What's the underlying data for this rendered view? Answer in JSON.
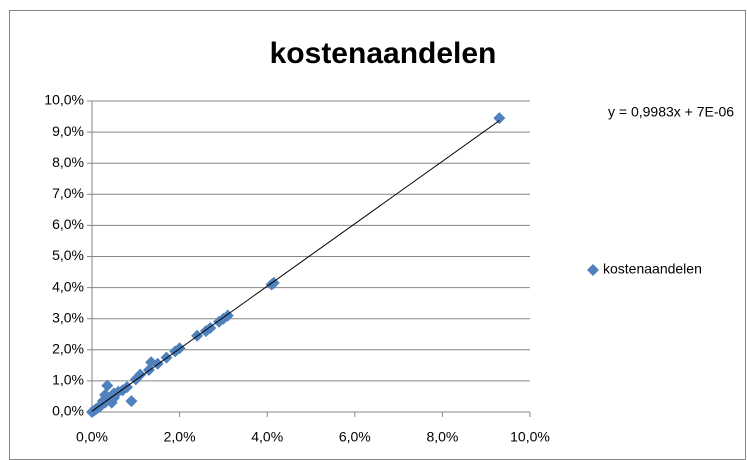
{
  "chart_data": {
    "type": "scatter",
    "title": "kostenaandelen",
    "annotation": "y = 0,9983x + 7E-06",
    "trendline": true,
    "grid": true,
    "legend": "right",
    "series": [
      {
        "name": "kostenaandelen",
        "color": "#4f81bd",
        "x": [
          9.3,
          4.1,
          4.15,
          3.1,
          3.0,
          2.9,
          2.7,
          2.6,
          2.4,
          2.0,
          1.9,
          1.7,
          1.5,
          1.35,
          1.3,
          1.1,
          1.0,
          0.9,
          0.8,
          0.7,
          0.6,
          0.5,
          0.5,
          0.4,
          0.35,
          0.3,
          0.25,
          0.2,
          0.15,
          0.1,
          0.05,
          0.0,
          0.3,
          0.45
        ],
        "values": [
          9.45,
          4.1,
          4.15,
          3.1,
          3.0,
          2.9,
          2.7,
          2.6,
          2.45,
          2.05,
          1.95,
          1.75,
          1.55,
          1.6,
          1.35,
          1.2,
          1.05,
          0.35,
          0.8,
          0.7,
          0.65,
          0.6,
          0.45,
          0.4,
          0.85,
          0.3,
          0.35,
          0.2,
          0.15,
          0.1,
          0.05,
          0.0,
          0.55,
          0.3
        ]
      }
    ],
    "xlim": [
      0,
      10
    ],
    "ylim": [
      0,
      10
    ],
    "xticks": [
      {
        "value": 0,
        "label": "0,0%"
      },
      {
        "value": 2,
        "label": "2,0%"
      },
      {
        "value": 4,
        "label": "4,0%"
      },
      {
        "value": 6,
        "label": "6,0%"
      },
      {
        "value": 8,
        "label": "8,0%"
      },
      {
        "value": 10,
        "label": "10,0%"
      }
    ],
    "yticks": [
      {
        "value": 0,
        "label": "0,0%"
      },
      {
        "value": 1,
        "label": "1,0%"
      },
      {
        "value": 2,
        "label": "2,0%"
      },
      {
        "value": 3,
        "label": "3,0%"
      },
      {
        "value": 4,
        "label": "4,0%"
      },
      {
        "value": 5,
        "label": "5,0%"
      },
      {
        "value": 6,
        "label": "6,0%"
      },
      {
        "value": 7,
        "label": "7,0%"
      },
      {
        "value": 8,
        "label": "8,0%"
      },
      {
        "value": 9,
        "label": "9,0%"
      },
      {
        "value": 10,
        "label": "10,0%"
      }
    ]
  }
}
